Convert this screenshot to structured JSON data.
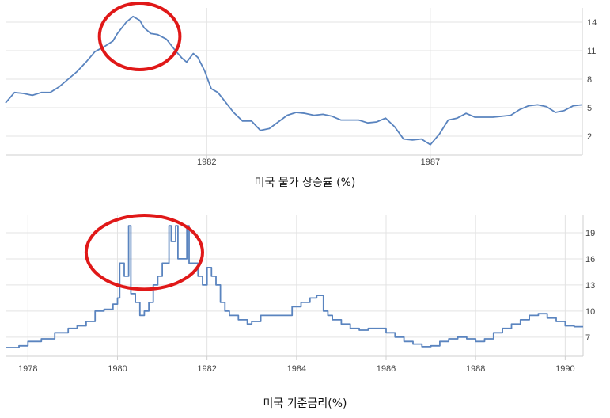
{
  "colors": {
    "line": "#5a84bf",
    "grid": "#e3e3e3",
    "axis": "#cfcfcf",
    "highlight": "#e01818"
  },
  "captions": {
    "cpi": "미국 물가 상승률 (%)",
    "rate": "미국 기준금리(%)"
  },
  "chart_data": [
    {
      "type": "line",
      "title": "",
      "xlabel": "",
      "ylabel": "",
      "xlim": [
        1977.5,
        1990.4
      ],
      "ylim": [
        0,
        15.5
      ],
      "grid": true,
      "y_axis_side": "right",
      "yticks": [
        2,
        5,
        8,
        11,
        14
      ],
      "ytick_labels": [
        "2",
        "5",
        "8",
        "11",
        "14"
      ],
      "xticks": [
        1982,
        1987
      ],
      "xtick_labels": [
        "1982",
        "1987"
      ],
      "highlight": {
        "shape": "circle",
        "x_range": [
          1979.6,
          1981.4
        ],
        "y_range": [
          9.0,
          16.0
        ]
      },
      "series": [
        {
          "values": [
            [
              1977.5,
              5.5
            ],
            [
              1977.7,
              6.6
            ],
            [
              1977.9,
              6.5
            ],
            [
              1978.1,
              6.3
            ],
            [
              1978.3,
              6.6
            ],
            [
              1978.5,
              6.6
            ],
            [
              1978.7,
              7.2
            ],
            [
              1978.9,
              8.0
            ],
            [
              1979.1,
              8.8
            ],
            [
              1979.3,
              9.8
            ],
            [
              1979.5,
              10.9
            ],
            [
              1979.7,
              11.4
            ],
            [
              1979.9,
              12.0
            ],
            [
              1980.0,
              12.8
            ],
            [
              1980.2,
              14.0
            ],
            [
              1980.35,
              14.6
            ],
            [
              1980.5,
              14.2
            ],
            [
              1980.6,
              13.4
            ],
            [
              1980.75,
              12.8
            ],
            [
              1980.9,
              12.7
            ],
            [
              1981.1,
              12.2
            ],
            [
              1981.3,
              11.0
            ],
            [
              1981.45,
              10.2
            ],
            [
              1981.55,
              9.8
            ],
            [
              1981.7,
              10.7
            ],
            [
              1981.8,
              10.3
            ],
            [
              1981.95,
              8.9
            ],
            [
              1982.1,
              7.0
            ],
            [
              1982.25,
              6.6
            ],
            [
              1982.4,
              5.7
            ],
            [
              1982.6,
              4.5
            ],
            [
              1982.8,
              3.6
            ],
            [
              1983.0,
              3.6
            ],
            [
              1983.2,
              2.6
            ],
            [
              1983.4,
              2.8
            ],
            [
              1983.6,
              3.5
            ],
            [
              1983.8,
              4.2
            ],
            [
              1984.0,
              4.5
            ],
            [
              1984.2,
              4.4
            ],
            [
              1984.4,
              4.2
            ],
            [
              1984.6,
              4.3
            ],
            [
              1984.8,
              4.1
            ],
            [
              1985.0,
              3.7
            ],
            [
              1985.2,
              3.7
            ],
            [
              1985.4,
              3.7
            ],
            [
              1985.6,
              3.4
            ],
            [
              1985.8,
              3.5
            ],
            [
              1986.0,
              3.9
            ],
            [
              1986.2,
              3.0
            ],
            [
              1986.4,
              1.7
            ],
            [
              1986.6,
              1.6
            ],
            [
              1986.8,
              1.7
            ],
            [
              1987.0,
              1.1
            ],
            [
              1987.2,
              2.2
            ],
            [
              1987.4,
              3.7
            ],
            [
              1987.6,
              3.9
            ],
            [
              1987.8,
              4.4
            ],
            [
              1988.0,
              4.0
            ],
            [
              1988.2,
              4.0
            ],
            [
              1988.4,
              4.0
            ],
            [
              1988.6,
              4.1
            ],
            [
              1988.8,
              4.2
            ],
            [
              1989.0,
              4.8
            ],
            [
              1989.2,
              5.2
            ],
            [
              1989.4,
              5.3
            ],
            [
              1989.6,
              5.1
            ],
            [
              1989.8,
              4.5
            ],
            [
              1990.0,
              4.7
            ],
            [
              1990.2,
              5.2
            ],
            [
              1990.4,
              5.3
            ]
          ]
        }
      ]
    },
    {
      "type": "line",
      "title": "",
      "xlabel": "",
      "ylabel": "",
      "xlim": [
        1977.5,
        1990.4
      ],
      "ylim": [
        4.8,
        21
      ],
      "grid": true,
      "y_axis_side": "right",
      "yticks": [
        7,
        10,
        13,
        16,
        19
      ],
      "ytick_labels": [
        "7",
        "10",
        "13",
        "16",
        "19"
      ],
      "xticks": [
        1978,
        1980,
        1982,
        1984,
        1986,
        1988,
        1990
      ],
      "xtick_labels": [
        "1978",
        "1980",
        "1982",
        "1984",
        "1986",
        "1988",
        "1990"
      ],
      "highlight": {
        "shape": "ellipse",
        "x_range": [
          1979.3,
          1981.9
        ],
        "y_range": [
          12.5,
          21.0
        ]
      },
      "series": [
        {
          "values": [
            [
              1977.5,
              5.8
            ],
            [
              1977.8,
              6.0
            ],
            [
              1978.0,
              6.5
            ],
            [
              1978.3,
              6.8
            ],
            [
              1978.6,
              7.5
            ],
            [
              1978.9,
              8.0
            ],
            [
              1979.1,
              8.3
            ],
            [
              1979.3,
              8.8
            ],
            [
              1979.5,
              10.0
            ],
            [
              1979.7,
              10.2
            ],
            [
              1979.9,
              10.8
            ],
            [
              1980.0,
              11.5
            ],
            [
              1980.05,
              15.5
            ],
            [
              1980.15,
              14.0
            ],
            [
              1980.25,
              19.8
            ],
            [
              1980.3,
              12.0
            ],
            [
              1980.4,
              11.0
            ],
            [
              1980.5,
              9.5
            ],
            [
              1980.6,
              10.0
            ],
            [
              1980.7,
              11.0
            ],
            [
              1980.8,
              13.0
            ],
            [
              1980.9,
              14.0
            ],
            [
              1981.0,
              15.5
            ],
            [
              1981.15,
              19.8
            ],
            [
              1981.2,
              18.0
            ],
            [
              1981.3,
              19.8
            ],
            [
              1981.35,
              16.0
            ],
            [
              1981.5,
              16.0
            ],
            [
              1981.55,
              19.8
            ],
            [
              1981.6,
              15.5
            ],
            [
              1981.8,
              14.0
            ],
            [
              1981.9,
              13.0
            ],
            [
              1982.0,
              15.0
            ],
            [
              1982.1,
              14.0
            ],
            [
              1982.2,
              13.0
            ],
            [
              1982.3,
              11.0
            ],
            [
              1982.4,
              10.0
            ],
            [
              1982.5,
              9.5
            ],
            [
              1982.7,
              9.0
            ],
            [
              1982.9,
              8.5
            ],
            [
              1983.0,
              8.8
            ],
            [
              1983.2,
              9.5
            ],
            [
              1983.5,
              9.5
            ],
            [
              1983.7,
              9.5
            ],
            [
              1983.9,
              10.5
            ],
            [
              1984.1,
              11.0
            ],
            [
              1984.3,
              11.5
            ],
            [
              1984.45,
              11.8
            ],
            [
              1984.6,
              10.0
            ],
            [
              1984.7,
              9.5
            ],
            [
              1984.8,
              9.0
            ],
            [
              1985.0,
              8.5
            ],
            [
              1985.2,
              8.0
            ],
            [
              1985.4,
              7.8
            ],
            [
              1985.6,
              8.0
            ],
            [
              1985.8,
              8.0
            ],
            [
              1986.0,
              7.5
            ],
            [
              1986.2,
              7.0
            ],
            [
              1986.4,
              6.5
            ],
            [
              1986.6,
              6.2
            ],
            [
              1986.8,
              5.9
            ],
            [
              1987.0,
              6.0
            ],
            [
              1987.2,
              6.5
            ],
            [
              1987.4,
              6.8
            ],
            [
              1987.6,
              7.0
            ],
            [
              1987.8,
              6.8
            ],
            [
              1988.0,
              6.5
            ],
            [
              1988.2,
              6.8
            ],
            [
              1988.4,
              7.5
            ],
            [
              1988.6,
              8.0
            ],
            [
              1988.8,
              8.5
            ],
            [
              1989.0,
              9.0
            ],
            [
              1989.2,
              9.5
            ],
            [
              1989.4,
              9.7
            ],
            [
              1989.6,
              9.2
            ],
            [
              1989.8,
              8.8
            ],
            [
              1990.0,
              8.3
            ],
            [
              1990.2,
              8.2
            ],
            [
              1990.4,
              8.2
            ]
          ]
        }
      ]
    }
  ]
}
